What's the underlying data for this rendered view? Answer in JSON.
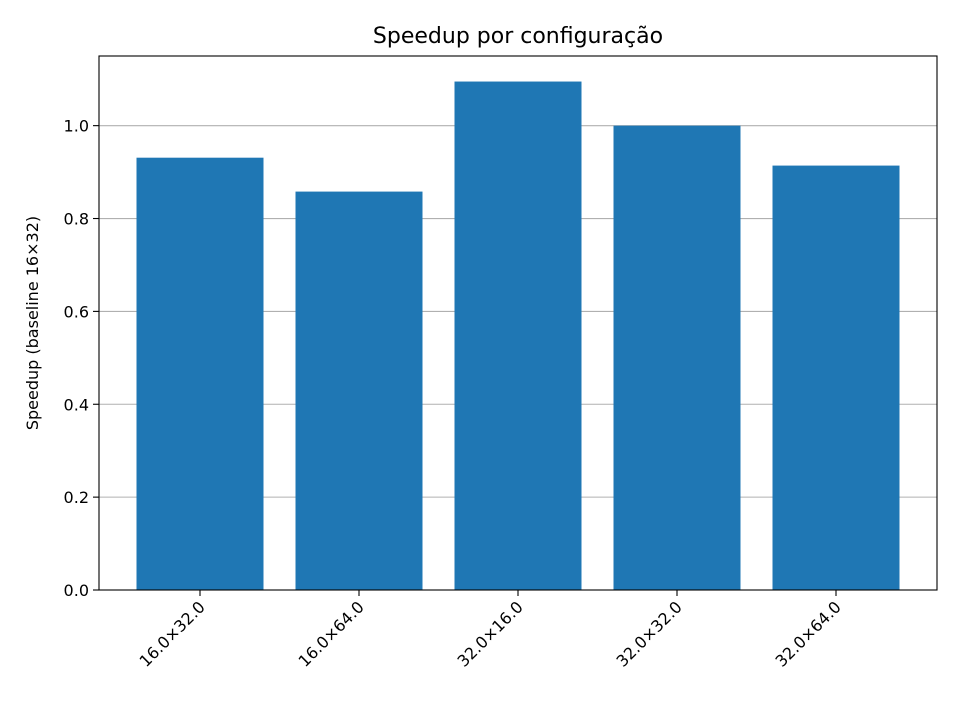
{
  "chart_data": {
    "type": "bar",
    "title": "Speedup por configuração",
    "xlabel": "",
    "ylabel": "Speedup (baseline 16×32)",
    "categories": [
      "16.0×32.0",
      "16.0×64.0",
      "32.0×16.0",
      "32.0×32.0",
      "32.0×64.0"
    ],
    "values": [
      0.931,
      0.858,
      1.095,
      1.0,
      0.914
    ],
    "ylim": [
      0,
      1.15
    ],
    "yticks": [
      "0.0",
      "0.2",
      "0.4",
      "0.6",
      "0.8",
      "1.0"
    ],
    "ytick_values": [
      0,
      0.2,
      0.4,
      0.6,
      0.8,
      1.0
    ],
    "grid": "y",
    "xtick_rotation": "45deg",
    "bar_color": "#1f77b4"
  }
}
